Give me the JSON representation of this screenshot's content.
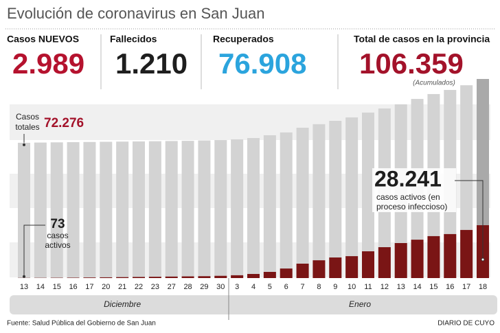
{
  "chart_data": {
    "type": "bar",
    "title": "Evolución de coronavirus en San Juan",
    "stats": [
      {
        "label": "Casos NUEVOS",
        "value": "2.989",
        "color": "#b5122e"
      },
      {
        "label": "Fallecidos",
        "value": "1.210",
        "color": "#1e1e1e"
      },
      {
        "label": "Recuperados",
        "value": "76.908",
        "color": "#2ba4dd"
      },
      {
        "label": "Total de casos en la provincia",
        "value": "106.359",
        "color": "#a3122a"
      }
    ],
    "stats_note": "(Acumulados)",
    "groups": [
      {
        "name": "Diciembre",
        "categories": [
          "13",
          "14",
          "15",
          "16",
          "17",
          "20",
          "21",
          "22",
          "23",
          "27",
          "28",
          "29",
          "30"
        ]
      },
      {
        "name": "Enero",
        "categories": [
          "3",
          "4",
          "5",
          "6",
          "7",
          "8",
          "9",
          "10",
          "11",
          "12",
          "13",
          "14",
          "15",
          "16",
          "17",
          "18"
        ]
      }
    ],
    "series": [
      {
        "name": [
          "Casos",
          "totales"
        ],
        "color": "#d3d3d3",
        "highlight_color": "#a9a9a9",
        "values": [
          72276,
          72400,
          72500,
          72600,
          72700,
          72800,
          72900,
          73000,
          73100,
          73200,
          73300,
          73500,
          73700,
          74100,
          74800,
          76300,
          77800,
          80300,
          82200,
          84000,
          85800,
          88400,
          90600,
          92800,
          95700,
          98300,
          100500,
          103000,
          106359
        ],
        "value_labels": [
          "72.276",
          null,
          null,
          null,
          null,
          null,
          null,
          null,
          null,
          null,
          null,
          null,
          null,
          null,
          null,
          null,
          null,
          null,
          null,
          null,
          null,
          null,
          null,
          null,
          null,
          null,
          null,
          null,
          null
        ]
      },
      {
        "name": [
          "casos",
          "activos"
        ],
        "color": "#7a1515",
        "values": [
          73,
          100,
          150,
          200,
          300,
          400,
          500,
          600,
          700,
          800,
          900,
          1000,
          1200,
          1500,
          2200,
          3300,
          5100,
          7700,
          9500,
          11000,
          11700,
          14300,
          16500,
          18700,
          20500,
          22400,
          23500,
          25700,
          28241
        ],
        "value_labels": [
          "73",
          null,
          null,
          null,
          null,
          null,
          null,
          null,
          null,
          null,
          null,
          null,
          null,
          null,
          null,
          null,
          null,
          null,
          null,
          null,
          null,
          null,
          null,
          null,
          null,
          null,
          null,
          null,
          "28.241"
        ],
        "annotation": [
          "casos activos (en",
          "proceso infeccioso)"
        ]
      }
    ],
    "source": "Fuente: Salud Pública del Gobierno de San Juan",
    "credit": "DIARIO DE CUYO"
  }
}
